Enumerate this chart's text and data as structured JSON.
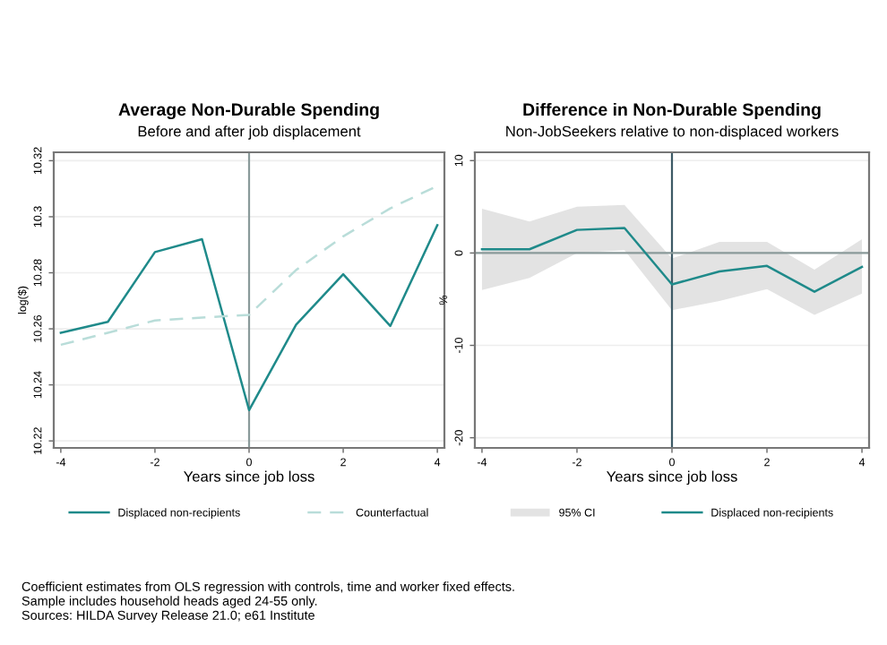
{
  "chart_data": [
    {
      "type": "line",
      "title": "Average Non-Durable Spending",
      "subtitle": "Before and after job displacement",
      "xlabel": "Years since job loss",
      "ylabel": "log($)",
      "x": [
        -4,
        -3,
        -2,
        -1,
        0,
        1,
        2,
        3,
        4
      ],
      "series": [
        {
          "name": "Displaced non-recipients",
          "color": "#1f8a8a",
          "line_style": "solid",
          "values": [
            10.2586,
            10.2625,
            10.2874,
            10.292,
            10.231,
            10.2615,
            10.2795,
            10.261,
            10.297
          ]
        },
        {
          "name": "Counterfactual",
          "color": "#b9ddd9",
          "line_style": "dashed",
          "values": [
            10.2543,
            10.2586,
            10.263,
            10.264,
            10.265,
            10.281,
            10.293,
            10.303,
            10.311
          ]
        }
      ],
      "xlim": [
        -4.15,
        4.15
      ],
      "ylim": [
        10.2175,
        10.323
      ],
      "xticks": [
        -4,
        -2,
        0,
        2,
        4
      ],
      "yticks": [
        10.22,
        10.24,
        10.26,
        10.28,
        10.3,
        10.32
      ],
      "ref_lines": [
        {
          "axis": "x",
          "value": 0,
          "color": "#8a9a9a"
        }
      ],
      "grid": "y",
      "legend": "bottom",
      "marker": "none",
      "annotations": [
        "Coefficient estimates from OLS regression with controls, time and worker fixed effects.",
        "Sample includes household heads aged 24-55 only.",
        "Sources: HILDA Survey Release 21.0; e61 Institute"
      ]
    },
    {
      "type": "line",
      "title": "Difference in Non-Durable Spending",
      "subtitle": "Non-JobSeekers relative to non-displaced workers",
      "xlabel": "Years since job loss",
      "ylabel": "%",
      "x": [
        -4,
        -3,
        -2,
        -1,
        0,
        1,
        2,
        3,
        4
      ],
      "series": [
        {
          "name": "Displaced non-recipients",
          "color": "#1f8a8a",
          "line_style": "solid",
          "values": [
            0.4,
            0.4,
            2.5,
            2.7,
            -3.4,
            -2.0,
            -1.4,
            -4.2,
            -1.5
          ],
          "lower": [
            -4.0,
            -2.7,
            0.0,
            0.3,
            -6.2,
            -5.2,
            -3.9,
            -6.7,
            -4.4
          ],
          "upper": [
            4.8,
            3.4,
            5.0,
            5.2,
            -0.6,
            1.2,
            1.2,
            -1.8,
            1.5
          ]
        }
      ],
      "xlim": [
        -4.15,
        4.15
      ],
      "ylim": [
        -21.1,
        10.9
      ],
      "xticks": [
        -4,
        -2,
        0,
        2,
        4
      ],
      "yticks": [
        -20,
        -10,
        0,
        10
      ],
      "ref_lines": [
        {
          "axis": "x",
          "value": 0,
          "color": "#3d5a66"
        },
        {
          "axis": "y",
          "value": 0,
          "color": "#8a9a9a"
        }
      ],
      "grid": "y",
      "legend": "bottom",
      "marker": "none",
      "annotations": [
        "95% CI"
      ]
    }
  ]
}
